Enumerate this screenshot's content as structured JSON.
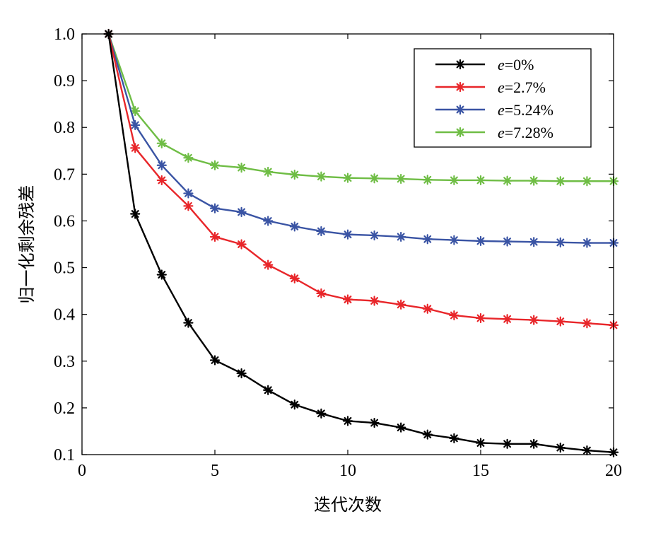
{
  "chart_data": {
    "type": "line",
    "title": "",
    "xlabel": "迭代次数",
    "ylabel": "归一化剩余残差",
    "xlim": [
      0,
      20
    ],
    "ylim": [
      0.1,
      1.0
    ],
    "xticks": [
      0,
      5,
      10,
      15,
      20
    ],
    "yticks": [
      "0.1",
      "0.2",
      "0.3",
      "0.4",
      "0.5",
      "0.6",
      "0.7",
      "0.8",
      "0.9",
      "1.0"
    ],
    "grid": false,
    "legend_position": "top-right",
    "marker": "asterisk",
    "x": [
      1,
      2,
      3,
      4,
      5,
      6,
      7,
      8,
      9,
      10,
      11,
      12,
      13,
      14,
      15,
      16,
      17,
      18,
      19,
      20
    ],
    "series": [
      {
        "name": "e=0%",
        "name_var": "e",
        "name_rest": "=0%",
        "color": "#000000",
        "values": [
          1.0,
          0.615,
          0.485,
          0.382,
          0.302,
          0.274,
          0.238,
          0.207,
          0.188,
          0.172,
          0.168,
          0.158,
          0.143,
          0.135,
          0.125,
          0.123,
          0.123,
          0.115,
          0.109,
          0.105
        ]
      },
      {
        "name": "e=2.7%",
        "name_var": "e",
        "name_rest": "=2.7%",
        "color": "#e8262a",
        "values": [
          1.0,
          0.756,
          0.687,
          0.632,
          0.566,
          0.55,
          0.506,
          0.477,
          0.445,
          0.432,
          0.429,
          0.421,
          0.412,
          0.398,
          0.392,
          0.39,
          0.388,
          0.385,
          0.381,
          0.377
        ]
      },
      {
        "name": "e=5.24%",
        "name_var": "e",
        "name_rest": "=5.24%",
        "color": "#3a54a4",
        "values": [
          1.0,
          0.805,
          0.719,
          0.659,
          0.627,
          0.619,
          0.6,
          0.588,
          0.578,
          0.571,
          0.569,
          0.566,
          0.561,
          0.559,
          0.557,
          0.556,
          0.555,
          0.554,
          0.553,
          0.553
        ]
      },
      {
        "name": "e=7.28%",
        "name_var": "e",
        "name_rest": "=7.28%",
        "color": "#6fbd45",
        "values": [
          1.0,
          0.835,
          0.766,
          0.735,
          0.719,
          0.714,
          0.705,
          0.699,
          0.695,
          0.692,
          0.691,
          0.69,
          0.688,
          0.687,
          0.687,
          0.686,
          0.686,
          0.685,
          0.685,
          0.685
        ]
      }
    ]
  }
}
